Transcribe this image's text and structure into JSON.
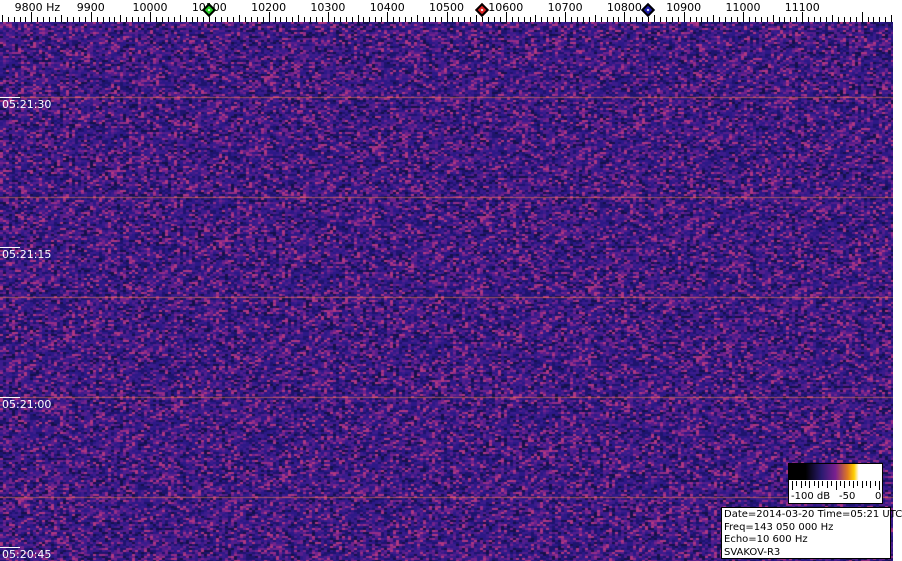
{
  "chart_data": {
    "type": "heatmap",
    "title": "",
    "x_unit_label": "9800 Hz",
    "x_ticks": [
      9800,
      9900,
      10000,
      10100,
      10200,
      10300,
      10400,
      10500,
      10600,
      10700,
      10800,
      10900,
      11000,
      11100
    ],
    "x_tick_labels": [
      "9800 Hz",
      "9900",
      "10000",
      "10100",
      "10200",
      "10300",
      "10400",
      "10500",
      "10600",
      "10700",
      "10800",
      "10900",
      "11000",
      "11100"
    ],
    "xlim": [
      9747,
      11253
    ],
    "y_tick_labels": [
      "05:21:30",
      "05:21:15",
      "05:21:00",
      "05:20:45"
    ],
    "markers": [
      {
        "freq": 10100,
        "color": "#22cc22"
      },
      {
        "freq": 10560,
        "color": "#dd2222"
      },
      {
        "freq": 10840,
        "color": "#1a1aaa"
      }
    ],
    "colorbar": {
      "labels": [
        "-100 dB",
        "-50",
        "0"
      ],
      "range_db": [
        -100,
        0
      ]
    },
    "colors": {
      "background": "#3a1a80",
      "noise_low": "#14104a",
      "noise_high": "#b0308a",
      "horizontal_line": "#ff8040"
    }
  },
  "info": {
    "line1": "Date=2014-03-20 Time=05:21 UTC",
    "line2": "Freq=143 050 000 Hz",
    "line3": "Echo=10 600 Hz",
    "line4": "SVAKOV-R3"
  }
}
